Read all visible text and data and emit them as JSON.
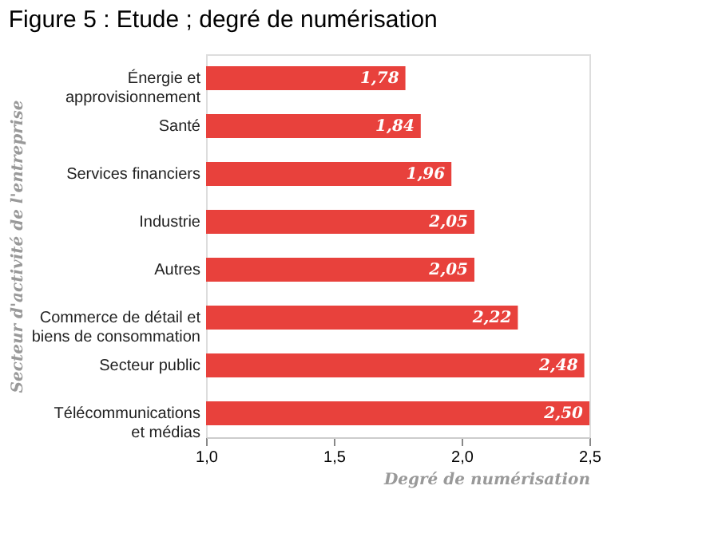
{
  "chart_data": {
    "type": "bar",
    "orientation": "horizontal",
    "title": "Figure 5 : Etude ; degré de numérisation",
    "xlabel": "Degré de numérisation",
    "ylabel": "Secteur d'activité de l'entreprise",
    "categories": [
      "Énergie et\napprovisionnement",
      "Santé",
      "Services financiers",
      "Industrie",
      "Autres",
      "Commerce de détail et\nbiens de consommation",
      "Secteur public",
      "Télécommunications\net médias"
    ],
    "values": [
      1.78,
      1.84,
      1.96,
      2.05,
      2.05,
      2.22,
      2.48,
      2.5
    ],
    "value_labels": [
      "1,78",
      "1,84",
      "1,96",
      "2,05",
      "2,05",
      "2,22",
      "2,48",
      "2,50"
    ],
    "color": "#e8413c",
    "xlim": [
      1.0,
      2.5
    ],
    "xticks": [
      {
        "value": 1.0,
        "label": "1,0"
      },
      {
        "value": 1.5,
        "label": "1,5"
      },
      {
        "value": 2.0,
        "label": "2,0"
      },
      {
        "value": 2.5,
        "label": "2,5"
      }
    ],
    "grid": false
  }
}
